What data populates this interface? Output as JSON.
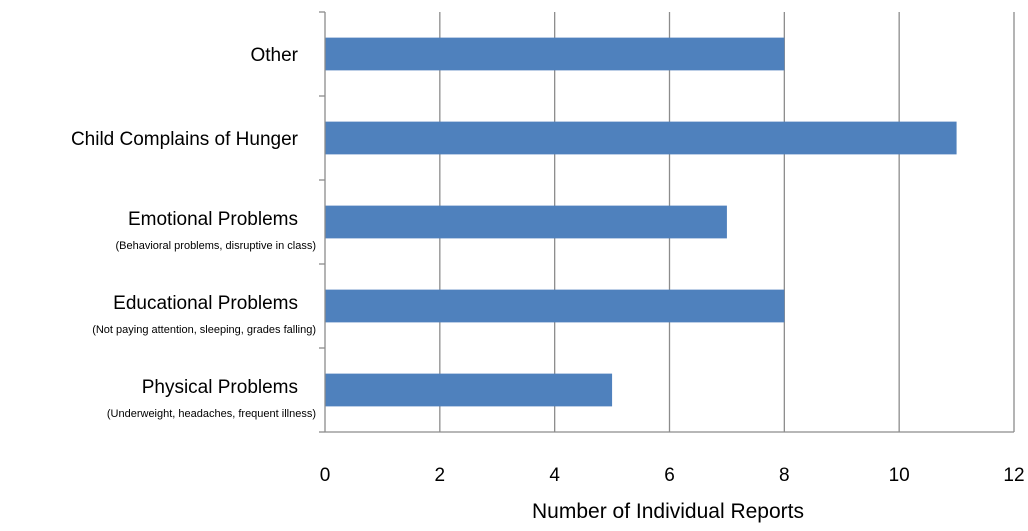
{
  "chart_data": {
    "type": "bar",
    "orientation": "horizontal",
    "title": "",
    "xlabel": "Number of Individual Reports",
    "ylabel": "",
    "xlim": [
      0,
      12
    ],
    "xticks": [
      0,
      2,
      4,
      6,
      8,
      10,
      12
    ],
    "grid": true,
    "legend": "none",
    "bar_color": "#4f81bd",
    "categories": [
      {
        "label": "Other",
        "sublabel": ""
      },
      {
        "label": "Child Complains of Hunger",
        "sublabel": ""
      },
      {
        "label": "Emotional Problems",
        "sublabel": "(Behavioral problems, disruptive in class)"
      },
      {
        "label": "Educational Problems",
        "sublabel": "(Not paying attention, sleeping, grades falling)"
      },
      {
        "label": "Physical Problems",
        "sublabel": "(Underweight, headaches, frequent illness)"
      }
    ],
    "values": [
      8,
      11,
      7,
      8,
      5
    ]
  }
}
